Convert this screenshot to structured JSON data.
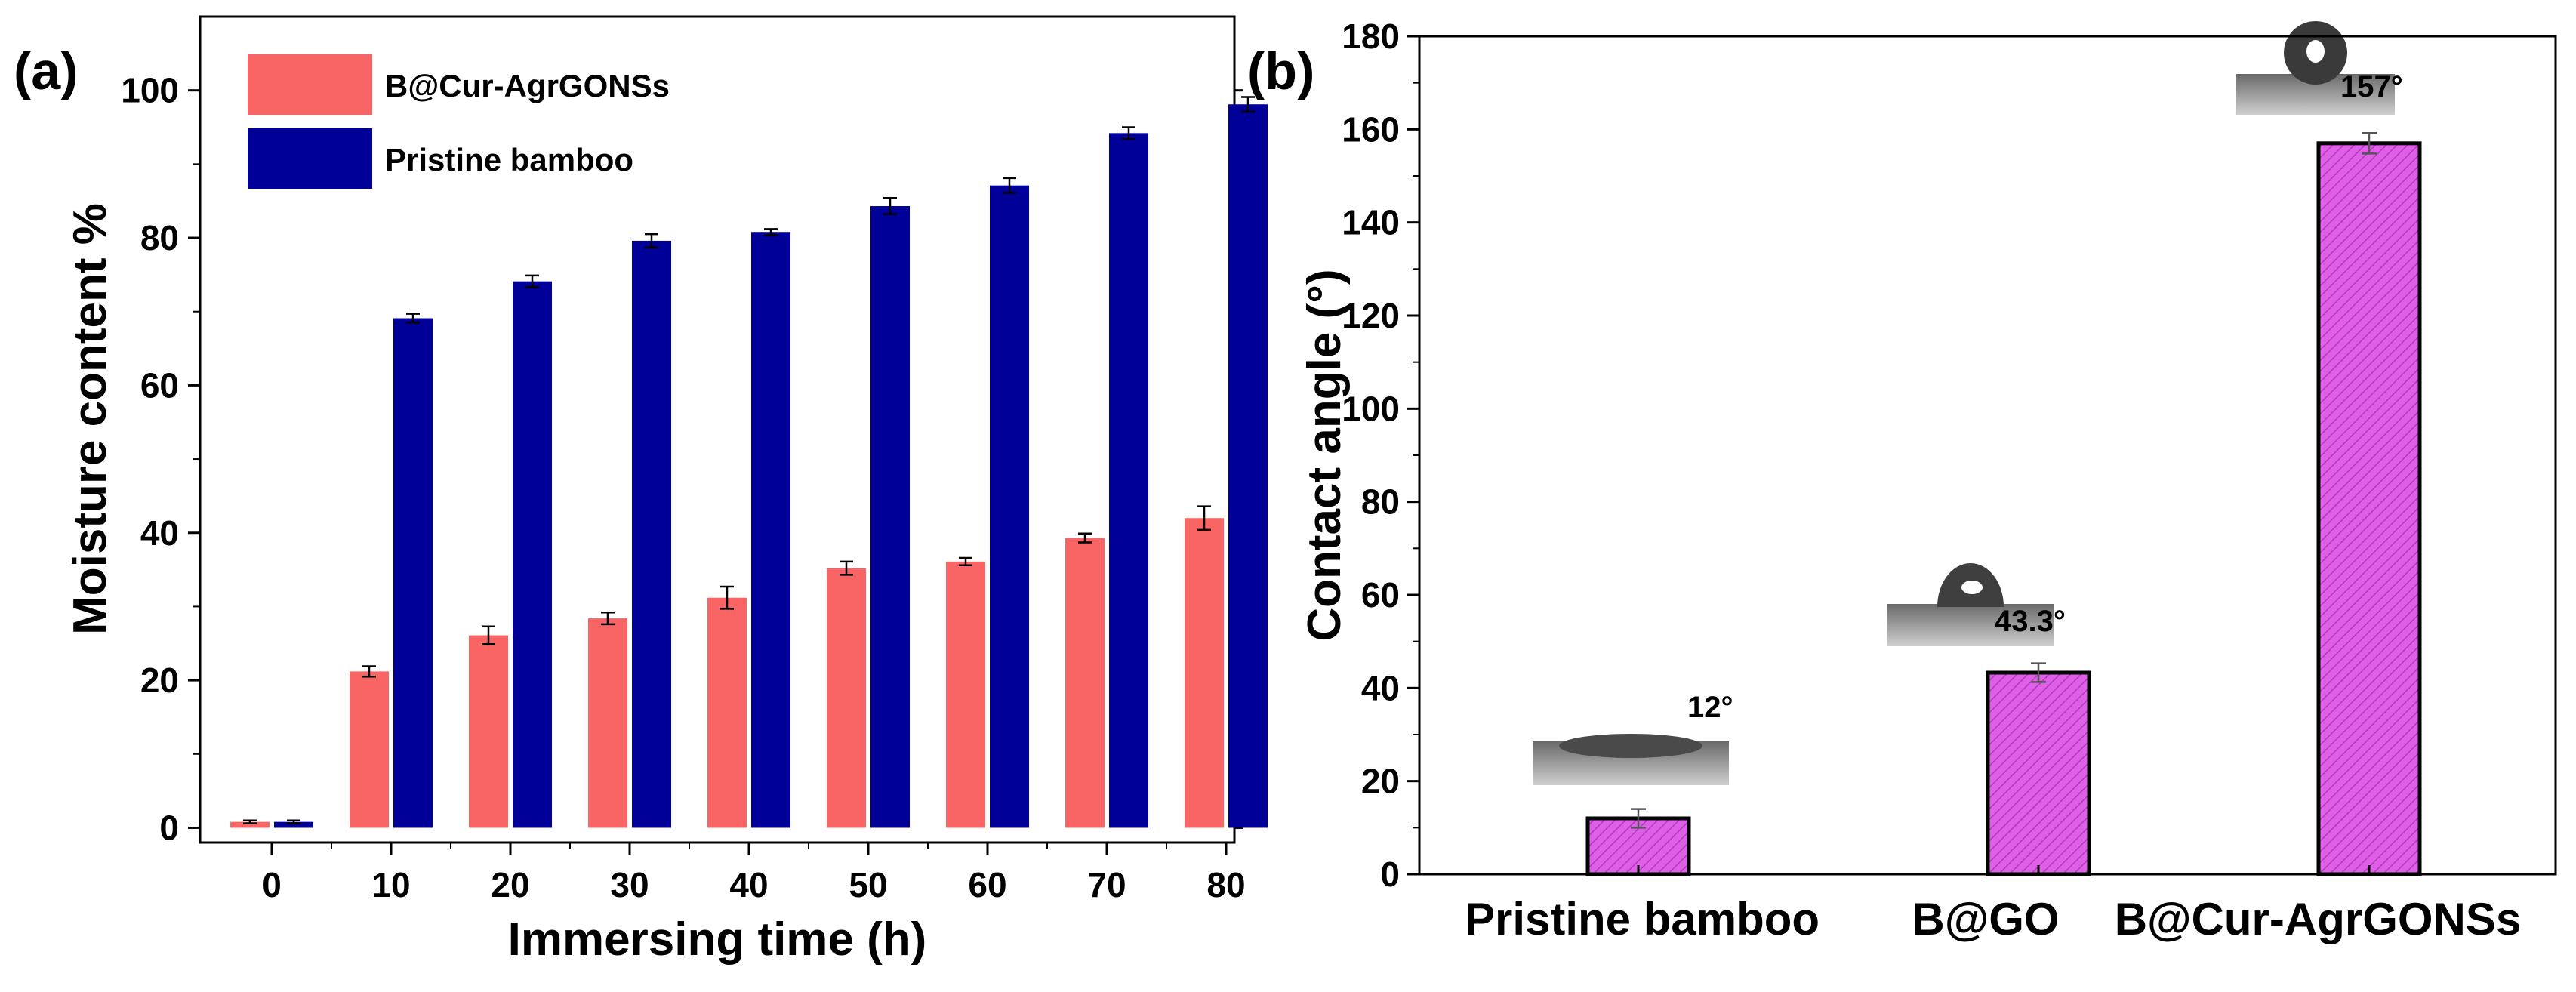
{
  "chart_data": [
    {
      "panel_label": "(a)",
      "type": "bar",
      "categories": [
        "0",
        "10",
        "20",
        "30",
        "40",
        "50",
        "60",
        "70",
        "80"
      ],
      "xlabel": "Immersing time (h)",
      "ylabel": "Moisture content %",
      "ylim": [
        -2,
        110
      ],
      "yticks": [
        0,
        20,
        40,
        60,
        80,
        100
      ],
      "legend_position": "top-left",
      "series": [
        {
          "name": "B@Cur-AgrGONSs",
          "color": "#f96565",
          "values": [
            0.8,
            21.2,
            26.1,
            28.4,
            31.2,
            35.2,
            36.1,
            39.3,
            42.0
          ],
          "errors": [
            0.2,
            0.7,
            1.2,
            0.8,
            1.5,
            0.9,
            0.5,
            0.6,
            1.6
          ]
        },
        {
          "name": "Pristine bamboo",
          "color": "#000099",
          "values": [
            0.8,
            69.1,
            74.1,
            79.6,
            80.8,
            84.3,
            87.1,
            94.2,
            98.1
          ],
          "errors": [
            0.2,
            0.6,
            0.8,
            0.9,
            0.4,
            1.1,
            1.0,
            0.8,
            1.0
          ]
        }
      ]
    },
    {
      "panel_label": "(b)",
      "type": "bar",
      "categories": [
        "Pristine bamboo",
        "B@GO",
        "B@Cur-AgrGONSs"
      ],
      "xlabel": "",
      "ylabel": "Contact angle (°)",
      "ylim": [
        0,
        180
      ],
      "yticks": [
        0,
        20,
        40,
        60,
        80,
        100,
        120,
        140,
        160,
        180
      ],
      "color": "#df5fe8",
      "values": [
        12,
        43.3,
        157
      ],
      "errors": [
        2.0,
        2.0,
        2.2
      ],
      "annotations": [
        "12°",
        "43.3°",
        "157°"
      ]
    }
  ]
}
